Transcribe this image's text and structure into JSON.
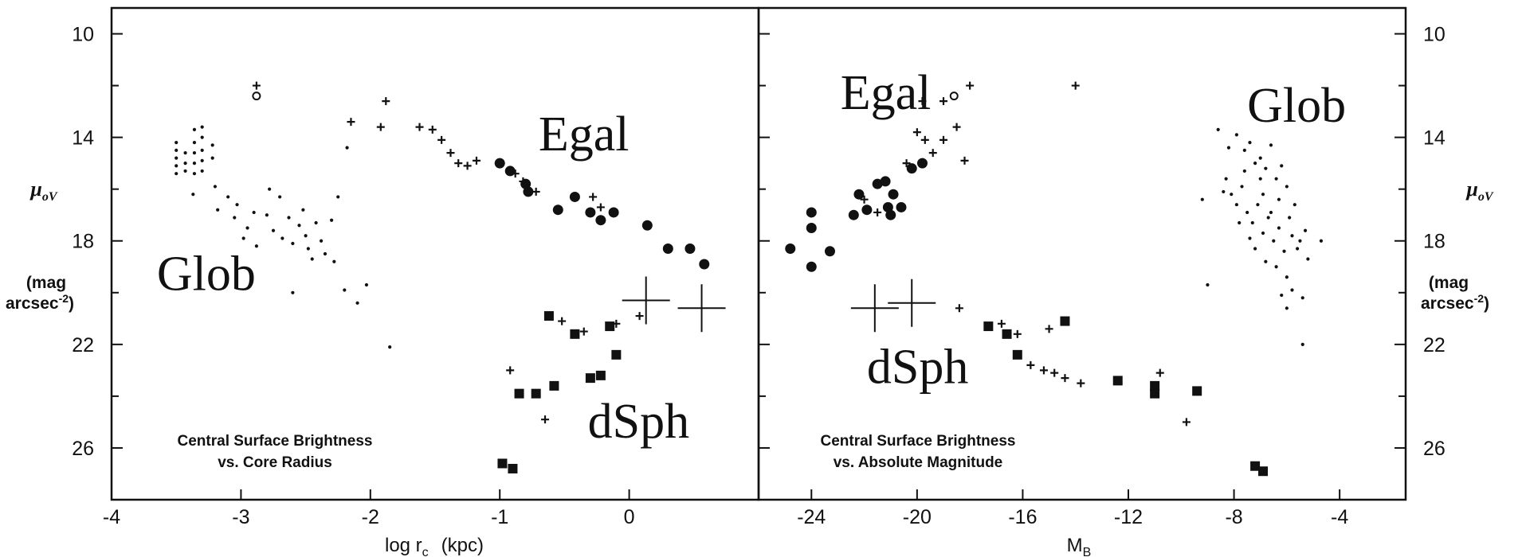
{
  "colors": {
    "ink": "#111111",
    "background": "#ffffff"
  },
  "chart_data": [
    {
      "type": "scatter",
      "caption": [
        "Central Surface Brightness",
        "vs. Core Radius"
      ],
      "xlabel": "log r",
      "xlabel_sub": "c",
      "xlabel_unit": "(kpc)",
      "ylabel": "μ",
      "ylabel_sub": "oV",
      "ylabel_unit": [
        "(mag",
        "arcsec"
      ],
      "ylabel_unit_sup": "-2",
      "xlim": [
        -4,
        1
      ],
      "ylim": [
        9,
        28
      ],
      "y_inverted": true,
      "x_ticks": [
        -4,
        -3,
        -2,
        -1,
        0
      ],
      "x_tick_labels": [
        "-4",
        "-3",
        "-2",
        "-1",
        "0"
      ],
      "y_ticks": [
        10,
        14,
        18,
        22,
        26
      ],
      "y_tick_labels": [
        "10",
        "14",
        "18",
        "22",
        "26"
      ],
      "annotations": [
        {
          "text": "Egal",
          "x": -0.7,
          "y": 14.5
        },
        {
          "text": "Glob",
          "x": -3.65,
          "y": 19.9
        },
        {
          "text": "dSph",
          "x": -0.32,
          "y": 25.6
        }
      ],
      "series": [
        {
          "marker": "dot",
          "points": [
            [
              -3.5,
              14.2
            ],
            [
              -3.5,
              14.5
            ],
            [
              -3.5,
              14.8
            ],
            [
              -3.5,
              15.1
            ],
            [
              -3.5,
              15.4
            ],
            [
              -3.43,
              14.6
            ],
            [
              -3.43,
              15.0
            ],
            [
              -3.43,
              15.3
            ],
            [
              -3.36,
              13.7
            ],
            [
              -3.36,
              14.2
            ],
            [
              -3.36,
              14.6
            ],
            [
              -3.36,
              15.0
            ],
            [
              -3.36,
              15.4
            ],
            [
              -3.3,
              13.6
            ],
            [
              -3.3,
              14.0
            ],
            [
              -3.3,
              14.5
            ],
            [
              -3.3,
              14.9
            ],
            [
              -3.3,
              15.3
            ],
            [
              -3.22,
              14.3
            ],
            [
              -3.22,
              14.8
            ],
            [
              -3.37,
              16.2
            ],
            [
              -3.2,
              15.9
            ],
            [
              -3.1,
              16.3
            ],
            [
              -3.03,
              16.6
            ],
            [
              -3.18,
              16.8
            ],
            [
              -3.05,
              17.1
            ],
            [
              -2.95,
              17.5
            ],
            [
              -2.9,
              16.9
            ],
            [
              -2.98,
              17.9
            ],
            [
              -2.88,
              18.2
            ],
            [
              -2.78,
              16.0
            ],
            [
              -2.8,
              17.0
            ],
            [
              -2.75,
              17.6
            ],
            [
              -2.7,
              16.3
            ],
            [
              -2.68,
              17.9
            ],
            [
              -2.63,
              17.1
            ],
            [
              -2.6,
              18.1
            ],
            [
              -2.55,
              17.4
            ],
            [
              -2.52,
              16.8
            ],
            [
              -2.5,
              17.8
            ],
            [
              -2.48,
              18.3
            ],
            [
              -2.45,
              18.7
            ],
            [
              -2.42,
              17.3
            ],
            [
              -2.38,
              18.0
            ],
            [
              -2.35,
              18.5
            ],
            [
              -2.3,
              17.2
            ],
            [
              -2.28,
              18.8
            ],
            [
              -2.25,
              16.3
            ],
            [
              -2.6,
              20.0
            ],
            [
              -2.2,
              19.9
            ],
            [
              -2.1,
              20.4
            ],
            [
              -2.03,
              19.7
            ],
            [
              -1.85,
              22.1
            ],
            [
              -2.18,
              14.4
            ]
          ]
        },
        {
          "marker": "plus-small",
          "points": [
            [
              -2.88,
              12.0
            ],
            [
              -2.15,
              13.4
            ],
            [
              -1.92,
              13.6
            ],
            [
              -1.88,
              12.6
            ],
            [
              -1.62,
              13.6
            ],
            [
              -1.52,
              13.7
            ],
            [
              -1.45,
              14.1
            ],
            [
              -1.38,
              14.6
            ],
            [
              -1.32,
              15.0
            ],
            [
              -1.25,
              15.1
            ],
            [
              -1.18,
              14.9
            ],
            [
              -0.88,
              15.4
            ],
            [
              -0.72,
              16.1
            ],
            [
              -0.28,
              16.3
            ],
            [
              -0.22,
              16.7
            ],
            [
              -0.12,
              16.9
            ],
            [
              0.08,
              20.9
            ],
            [
              -0.92,
              23.0
            ],
            [
              -0.52,
              21.1
            ],
            [
              -0.35,
              21.5
            ],
            [
              -0.22,
              23.2
            ],
            [
              -0.1,
              21.2
            ],
            [
              -0.65,
              24.9
            ],
            [
              -1.0,
              15.0
            ],
            [
              -0.82,
              15.7
            ]
          ]
        },
        {
          "marker": "circle-open",
          "points": [
            [
              -2.88,
              12.4
            ]
          ]
        },
        {
          "marker": "dot-large",
          "points": [
            [
              -1.0,
              15.0
            ],
            [
              -0.92,
              15.3
            ],
            [
              -0.8,
              15.8
            ],
            [
              -0.78,
              16.1
            ],
            [
              -0.55,
              16.8
            ],
            [
              -0.42,
              16.3
            ],
            [
              -0.3,
              16.9
            ],
            [
              -0.22,
              17.2
            ],
            [
              -0.12,
              16.9
            ],
            [
              0.14,
              17.4
            ],
            [
              0.3,
              18.3
            ],
            [
              0.47,
              18.3
            ],
            [
              0.58,
              18.9
            ]
          ]
        },
        {
          "marker": "square",
          "points": [
            [
              -0.62,
              20.9
            ],
            [
              -0.42,
              21.6
            ],
            [
              -0.15,
              21.3
            ],
            [
              -0.1,
              22.4
            ],
            [
              -0.3,
              23.3
            ],
            [
              -0.22,
              23.2
            ],
            [
              -0.58,
              23.6
            ],
            [
              -0.72,
              23.9
            ],
            [
              -0.85,
              23.9
            ],
            [
              -0.98,
              26.6
            ],
            [
              -0.9,
              26.8
            ]
          ]
        },
        {
          "marker": "cross-large",
          "points": [
            [
              0.13,
              20.3
            ],
            [
              0.56,
              20.6
            ]
          ]
        }
      ]
    },
    {
      "type": "scatter",
      "caption": [
        "Central Surface Brightness",
        "vs. Absolute Magnitude"
      ],
      "xlabel": "M",
      "xlabel_sub": "B",
      "ylabel": "μ",
      "ylabel_sub": "oV",
      "ylabel_unit": [
        "(mag",
        "arcsec"
      ],
      "ylabel_unit_sup": "-2",
      "xlim": [
        -26,
        -1.5
      ],
      "ylim": [
        9,
        28
      ],
      "y_inverted": true,
      "x_ticks": [
        -24,
        -20,
        -16,
        -12,
        -8,
        -4
      ],
      "x_tick_labels": [
        "-24",
        "-20",
        "-16",
        "-12",
        "-8",
        "-4"
      ],
      "y_ticks": [
        10,
        14,
        18,
        22,
        26
      ],
      "y_tick_labels": [
        "10",
        "14",
        "18",
        "22",
        "26"
      ],
      "annotations": [
        {
          "text": "Egal",
          "x": -22.9,
          "y": 12.9
        },
        {
          "text": "Glob",
          "x": -7.5,
          "y": 13.4
        },
        {
          "text": "dSph",
          "x": -21.9,
          "y": 23.5
        }
      ],
      "series": [
        {
          "marker": "dot",
          "points": [
            [
              -8.6,
              13.7
            ],
            [
              -8.2,
              14.4
            ],
            [
              -7.9,
              13.9
            ],
            [
              -7.6,
              14.5
            ],
            [
              -7.4,
              14.2
            ],
            [
              -7.2,
              15.0
            ],
            [
              -7.0,
              14.8
            ],
            [
              -6.8,
              15.2
            ],
            [
              -6.6,
              14.3
            ],
            [
              -6.4,
              15.6
            ],
            [
              -6.2,
              15.1
            ],
            [
              -6.0,
              15.9
            ],
            [
              -8.3,
              15.6
            ],
            [
              -8.1,
              16.2
            ],
            [
              -7.9,
              16.6
            ],
            [
              -7.7,
              15.9
            ],
            [
              -7.5,
              16.9
            ],
            [
              -7.3,
              17.3
            ],
            [
              -7.1,
              16.6
            ],
            [
              -6.9,
              17.7
            ],
            [
              -6.7,
              17.1
            ],
            [
              -6.5,
              18.0
            ],
            [
              -6.3,
              17.5
            ],
            [
              -6.1,
              18.4
            ],
            [
              -5.9,
              17.1
            ],
            [
              -5.7,
              16.6
            ],
            [
              -5.5,
              18.0
            ],
            [
              -5.3,
              17.6
            ],
            [
              -8.4,
              16.1
            ],
            [
              -7.8,
              17.3
            ],
            [
              -7.2,
              18.3
            ],
            [
              -6.8,
              18.8
            ],
            [
              -6.4,
              19.0
            ],
            [
              -6.0,
              19.4
            ],
            [
              -5.6,
              18.3
            ],
            [
              -5.2,
              18.7
            ],
            [
              -9.2,
              16.4
            ],
            [
              -9.0,
              19.7
            ],
            [
              -6.2,
              20.1
            ],
            [
              -5.8,
              19.9
            ],
            [
              -5.4,
              20.2
            ],
            [
              -5.4,
              22.0
            ],
            [
              -6.0,
              20.6
            ],
            [
              -4.7,
              18.0
            ],
            [
              -7.6,
              15.3
            ],
            [
              -6.9,
              16.2
            ],
            [
              -6.3,
              16.4
            ],
            [
              -5.8,
              17.8
            ],
            [
              -7.0,
              15.6
            ],
            [
              -6.6,
              16.9
            ],
            [
              -7.4,
              17.9
            ]
          ]
        },
        {
          "marker": "plus-small",
          "points": [
            [
              -19.0,
              12.6
            ],
            [
              -18.0,
              12.0
            ],
            [
              -19.8,
              12.6
            ],
            [
              -20.0,
              13.8
            ],
            [
              -19.7,
              14.1
            ],
            [
              -19.4,
              14.6
            ],
            [
              -19.0,
              14.1
            ],
            [
              -18.5,
              13.6
            ],
            [
              -18.2,
              14.9
            ],
            [
              -20.4,
              15.0
            ],
            [
              -21.5,
              16.9
            ],
            [
              -18.4,
              20.6
            ],
            [
              -16.8,
              21.2
            ],
            [
              -16.2,
              21.6
            ],
            [
              -15.0,
              21.4
            ],
            [
              -15.7,
              22.8
            ],
            [
              -15.2,
              23.0
            ],
            [
              -14.8,
              23.1
            ],
            [
              -14.4,
              23.3
            ],
            [
              -13.8,
              23.5
            ],
            [
              -14.0,
              12.0
            ],
            [
              -10.8,
              23.1
            ],
            [
              -9.8,
              25.0
            ],
            [
              -22.0,
              16.4
            ]
          ]
        },
        {
          "marker": "circle-open",
          "points": [
            [
              -18.6,
              12.4
            ]
          ]
        },
        {
          "marker": "dot-large",
          "points": [
            [
              -24.8,
              18.3
            ],
            [
              -24.0,
              17.5
            ],
            [
              -24.0,
              16.9
            ],
            [
              -24.0,
              19.0
            ],
            [
              -23.3,
              18.4
            ],
            [
              -22.4,
              17.0
            ],
            [
              -22.2,
              16.2
            ],
            [
              -21.9,
              16.8
            ],
            [
              -21.5,
              15.8
            ],
            [
              -21.2,
              15.7
            ],
            [
              -21.1,
              16.7
            ],
            [
              -21.0,
              17.0
            ],
            [
              -20.6,
              16.7
            ],
            [
              -20.2,
              15.2
            ],
            [
              -19.8,
              15.0
            ],
            [
              -20.9,
              16.2
            ]
          ]
        },
        {
          "marker": "square",
          "points": [
            [
              -17.3,
              21.3
            ],
            [
              -16.6,
              21.6
            ],
            [
              -16.2,
              22.4
            ],
            [
              -14.4,
              21.1
            ],
            [
              -12.4,
              23.4
            ],
            [
              -11.0,
              23.6
            ],
            [
              -11.0,
              23.9
            ],
            [
              -9.4,
              23.8
            ],
            [
              -7.2,
              26.7
            ],
            [
              -6.9,
              26.9
            ]
          ]
        },
        {
          "marker": "cross-large",
          "points": [
            [
              -21.6,
              20.6
            ],
            [
              -20.2,
              20.4
            ]
          ]
        }
      ]
    }
  ]
}
